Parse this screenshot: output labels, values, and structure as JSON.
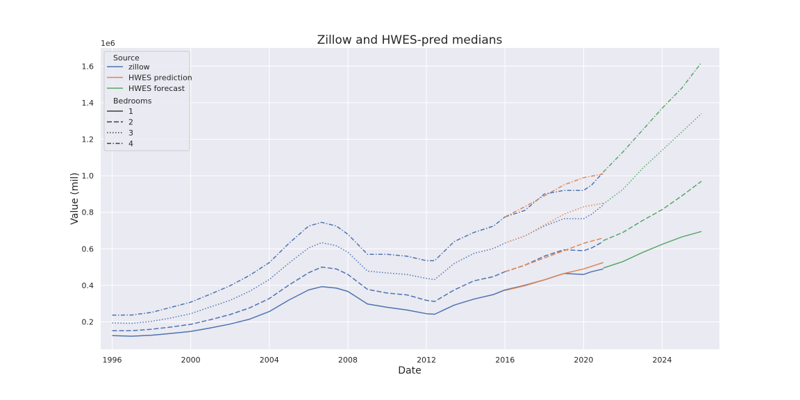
{
  "chart_data": {
    "type": "line",
    "title": "Zillow and HWES-pred medians",
    "xlabel": "Date",
    "ylabel": "Value (mil)",
    "y_offset_text": "1e6",
    "x_type": "date",
    "xlim": [
      "1995-06-01",
      "2026-12-01"
    ],
    "ylim": [
      50000,
      1700000
    ],
    "x_ticks": [
      "1996",
      "2000",
      "2004",
      "2008",
      "2012",
      "2016",
      "2020",
      "2024"
    ],
    "y_ticks": [
      "0.2",
      "0.4",
      "0.6",
      "0.8",
      "1.0",
      "1.2",
      "1.4",
      "1.6"
    ],
    "grid": true,
    "background": "#eaeaf2",
    "legend": {
      "placement": "top-left",
      "source_title": "Source",
      "sources": [
        {
          "label": "zillow",
          "color": "#4c72b0"
        },
        {
          "label": "HWES prediction",
          "color": "#dd8452"
        },
        {
          "label": "HWES forecast",
          "color": "#55a868"
        }
      ],
      "bedrooms_title": "Bedrooms",
      "bedrooms": [
        {
          "label": "1",
          "style": "solid"
        },
        {
          "label": "2",
          "style": "dashed"
        },
        {
          "label": "3",
          "style": "dotted"
        },
        {
          "label": "4",
          "style": "dashdot"
        }
      ]
    },
    "series": [
      {
        "source": "zillow",
        "bedrooms": "1",
        "style": "solid",
        "color": "#4c72b0",
        "x": [
          "1996-01-01",
          "1997-01-01",
          "1998-01-01",
          "1999-01-01",
          "2000-01-01",
          "2001-01-01",
          "2002-01-01",
          "2003-01-01",
          "2004-01-01",
          "2005-01-01",
          "2006-01-01",
          "2006-09-01",
          "2007-06-01",
          "2008-01-01",
          "2009-01-01",
          "2010-01-01",
          "2011-01-01",
          "2012-01-01",
          "2012-06-01",
          "2013-06-01",
          "2014-06-01",
          "2015-06-01",
          "2016-01-01"
        ],
        "y": [
          125000,
          122000,
          127000,
          137000,
          148000,
          167000,
          188000,
          215000,
          257000,
          320000,
          375000,
          393000,
          385000,
          367000,
          298000,
          280000,
          265000,
          245000,
          242000,
          292000,
          325000,
          350000,
          375000
        ]
      },
      {
        "source": "zillow",
        "bedrooms": "2",
        "style": "dashed",
        "color": "#4c72b0",
        "x": [
          "1996-01-01",
          "1997-01-01",
          "1998-01-01",
          "1999-01-01",
          "2000-01-01",
          "2001-01-01",
          "2002-01-01",
          "2003-01-01",
          "2004-01-01",
          "2005-01-01",
          "2006-01-01",
          "2006-09-01",
          "2007-06-01",
          "2008-01-01",
          "2009-01-01",
          "2010-01-01",
          "2011-01-01",
          "2012-01-01",
          "2012-06-01",
          "2013-06-01",
          "2014-06-01",
          "2015-06-01",
          "2016-01-01"
        ],
        "y": [
          152000,
          152000,
          160000,
          172000,
          187000,
          212000,
          240000,
          277000,
          328000,
          402000,
          469000,
          500000,
          490000,
          460000,
          378000,
          358000,
          348000,
          318000,
          312000,
          375000,
          425000,
          448000,
          475000
        ]
      },
      {
        "source": "zillow",
        "bedrooms": "3",
        "style": "dotted",
        "color": "#4c72b0",
        "x": [
          "1996-01-01",
          "1997-01-01",
          "1998-01-01",
          "1999-01-01",
          "2000-01-01",
          "2001-01-01",
          "2002-01-01",
          "2003-01-01",
          "2004-01-01",
          "2005-01-01",
          "2006-01-01",
          "2006-09-01",
          "2007-06-01",
          "2008-01-01",
          "2009-01-01",
          "2010-01-01",
          "2011-01-01",
          "2012-01-01",
          "2012-06-01",
          "2013-06-01",
          "2014-06-01",
          "2015-06-01",
          "2016-01-01"
        ],
        "y": [
          194000,
          192000,
          203000,
          222000,
          245000,
          282000,
          318000,
          368000,
          432000,
          522000,
          605000,
          634000,
          617000,
          582000,
          478000,
          468000,
          460000,
          438000,
          432000,
          520000,
          575000,
          602000,
          632000
        ]
      },
      {
        "source": "zillow",
        "bedrooms": "4",
        "style": "dashdot",
        "color": "#4c72b0",
        "x": [
          "1996-01-01",
          "1997-01-01",
          "1998-01-01",
          "1999-01-01",
          "2000-01-01",
          "2001-01-01",
          "2002-01-01",
          "2003-01-01",
          "2004-01-01",
          "2005-01-01",
          "2006-01-01",
          "2006-09-01",
          "2007-06-01",
          "2008-01-01",
          "2009-01-01",
          "2010-01-01",
          "2011-01-01",
          "2012-01-01",
          "2012-06-01",
          "2013-06-01",
          "2014-06-01",
          "2015-06-01",
          "2016-01-01"
        ],
        "y": [
          237000,
          238000,
          252000,
          280000,
          308000,
          352000,
          398000,
          455000,
          525000,
          630000,
          725000,
          745000,
          725000,
          680000,
          570000,
          570000,
          560000,
          535000,
          535000,
          640000,
          690000,
          725000,
          775000
        ]
      },
      {
        "source": "zillow",
        "bedrooms": "1",
        "style": "solid",
        "color": "#4c72b0",
        "x": [
          "2016-01-01",
          "2017-01-01",
          "2018-01-01",
          "2019-01-01",
          "2020-01-01",
          "2020-06-01",
          "2021-01-01"
        ],
        "y": [
          375000,
          400000,
          430000,
          465000,
          460000,
          475000,
          490000
        ]
      },
      {
        "source": "zillow",
        "bedrooms": "2",
        "style": "dashed",
        "color": "#4c72b0",
        "x": [
          "2016-01-01",
          "2017-01-01",
          "2018-01-01",
          "2019-01-01",
          "2020-01-01",
          "2020-06-01",
          "2021-01-01"
        ],
        "y": [
          475000,
          510000,
          560000,
          595000,
          590000,
          605000,
          640000
        ]
      },
      {
        "source": "zillow",
        "bedrooms": "3",
        "style": "dotted",
        "color": "#4c72b0",
        "x": [
          "2016-01-01",
          "2017-01-01",
          "2018-01-01",
          "2019-01-01",
          "2020-01-01",
          "2020-06-01",
          "2021-01-01"
        ],
        "y": [
          632000,
          670000,
          725000,
          765000,
          765000,
          790000,
          840000
        ]
      },
      {
        "source": "zillow",
        "bedrooms": "4",
        "style": "dashdot",
        "color": "#4c72b0",
        "x": [
          "2016-01-01",
          "2017-01-01",
          "2018-01-01",
          "2019-01-01",
          "2020-01-01",
          "2020-06-01",
          "2021-01-01"
        ],
        "y": [
          775000,
          810000,
          900000,
          920000,
          920000,
          950000,
          1020000
        ]
      },
      {
        "source": "HWES prediction",
        "bedrooms": "1",
        "style": "solid",
        "color": "#dd8452",
        "x": [
          "2016-01-01",
          "2017-01-01",
          "2018-01-01",
          "2019-01-01",
          "2020-01-01",
          "2021-01-01"
        ],
        "y": [
          372000,
          398000,
          430000,
          465000,
          490000,
          525000
        ]
      },
      {
        "source": "HWES prediction",
        "bedrooms": "2",
        "style": "dashed",
        "color": "#dd8452",
        "x": [
          "2016-01-01",
          "2017-01-01",
          "2018-01-01",
          "2019-01-01",
          "2020-01-01",
          "2021-01-01"
        ],
        "y": [
          475000,
          510000,
          550000,
          590000,
          630000,
          660000
        ]
      },
      {
        "source": "HWES prediction",
        "bedrooms": "3",
        "style": "dotted",
        "color": "#dd8452",
        "x": [
          "2016-01-01",
          "2017-01-01",
          "2018-01-01",
          "2019-01-01",
          "2020-01-01",
          "2021-01-01"
        ],
        "y": [
          632000,
          670000,
          730000,
          790000,
          830000,
          850000
        ]
      },
      {
        "source": "HWES prediction",
        "bedrooms": "4",
        "style": "dashdot",
        "color": "#dd8452",
        "x": [
          "2016-01-01",
          "2017-01-01",
          "2018-01-01",
          "2019-01-01",
          "2020-01-01",
          "2021-01-01"
        ],
        "y": [
          775000,
          830000,
          890000,
          950000,
          990000,
          1010000
        ]
      },
      {
        "source": "HWES forecast",
        "bedrooms": "1",
        "style": "solid",
        "color": "#55a868",
        "x": [
          "2021-01-01",
          "2022-01-01",
          "2023-01-01",
          "2024-01-01",
          "2025-01-01",
          "2026-01-01"
        ],
        "y": [
          495000,
          530000,
          580000,
          625000,
          665000,
          695000
        ]
      },
      {
        "source": "HWES forecast",
        "bedrooms": "2",
        "style": "dashed",
        "color": "#55a868",
        "x": [
          "2021-01-01",
          "2022-01-01",
          "2023-01-01",
          "2024-01-01",
          "2025-01-01",
          "2026-01-01"
        ],
        "y": [
          645000,
          690000,
          755000,
          815000,
          890000,
          970000
        ]
      },
      {
        "source": "HWES forecast",
        "bedrooms": "3",
        "style": "dotted",
        "color": "#55a868",
        "x": [
          "2021-01-01",
          "2022-01-01",
          "2023-01-01",
          "2024-01-01",
          "2025-01-01",
          "2026-01-01"
        ],
        "y": [
          845000,
          925000,
          1040000,
          1140000,
          1240000,
          1340000
        ]
      },
      {
        "source": "HWES forecast",
        "bedrooms": "4",
        "style": "dashdot",
        "color": "#55a868",
        "x": [
          "2021-01-01",
          "2022-01-01",
          "2023-01-01",
          "2024-01-01",
          "2025-01-01",
          "2026-01-01"
        ],
        "y": [
          1020000,
          1130000,
          1250000,
          1370000,
          1480000,
          1620000
        ]
      }
    ]
  }
}
